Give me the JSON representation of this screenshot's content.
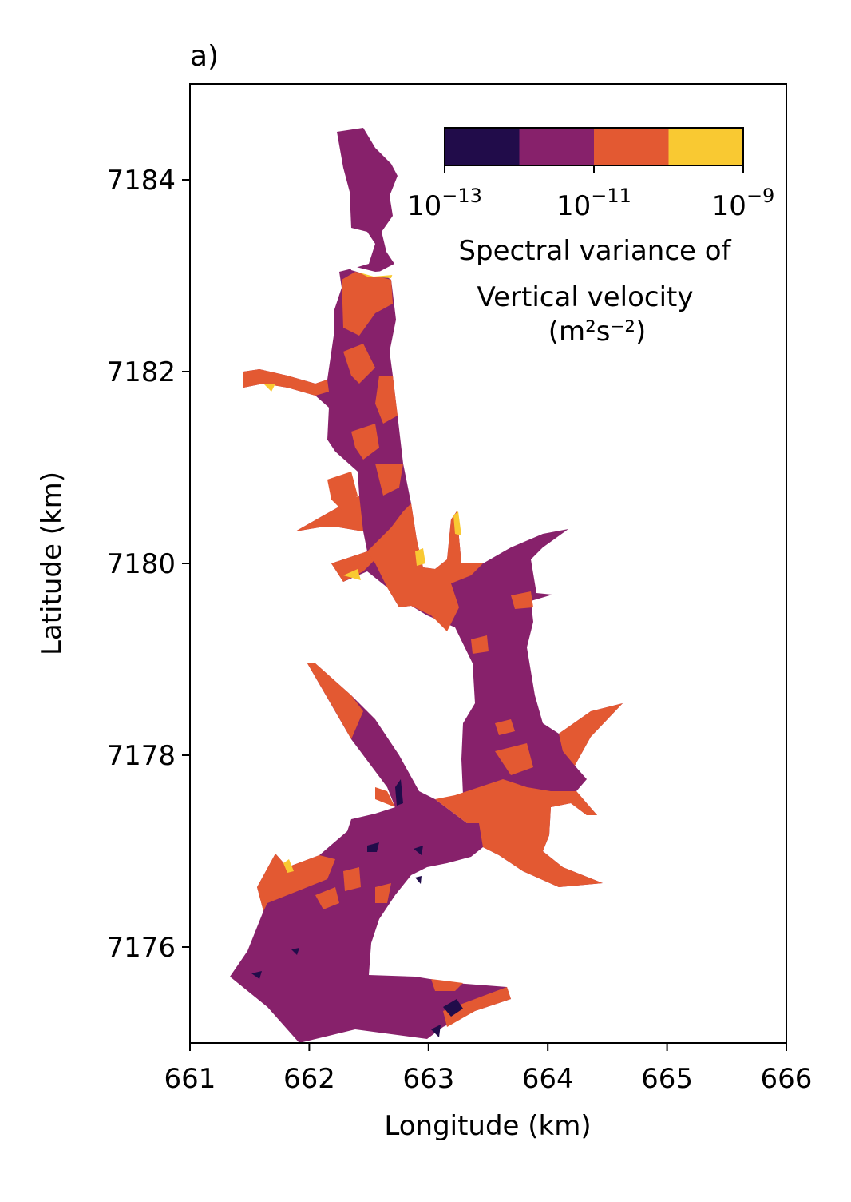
{
  "panel_label": "a)",
  "colors": {
    "level_0": "#210c4a",
    "level_1": "#87216b",
    "level_2": "#e35932",
    "level_3": "#f9c932"
  },
  "chart_data": {
    "type": "heatmap",
    "title": "a)",
    "xlabel": "Longitude (km)",
    "ylabel": "Latitude (km)",
    "xlim": [
      661,
      666
    ],
    "ylim": [
      7175,
      7185
    ],
    "xticks": [
      661,
      662,
      663,
      664,
      665,
      666
    ],
    "yticks": [
      7176,
      7178,
      7180,
      7182,
      7184
    ],
    "grid": false,
    "colorbar": {
      "label_line1": "Spectral variance of",
      "label_line2": "Vertical velocity",
      "label_line3": "(m²s⁻²)",
      "scale": "log",
      "levels": [
        1e-13,
        1e-12,
        1e-11,
        1e-10,
        1e-09
      ],
      "ticks": [
        {
          "base": "10",
          "exp": "−13",
          "value": 1e-13
        },
        {
          "base": "10",
          "exp": "−11",
          "value": 1e-11
        },
        {
          "base": "10",
          "exp": "−9",
          "value": 1e-09
        }
      ],
      "placement": "top-right"
    }
  }
}
